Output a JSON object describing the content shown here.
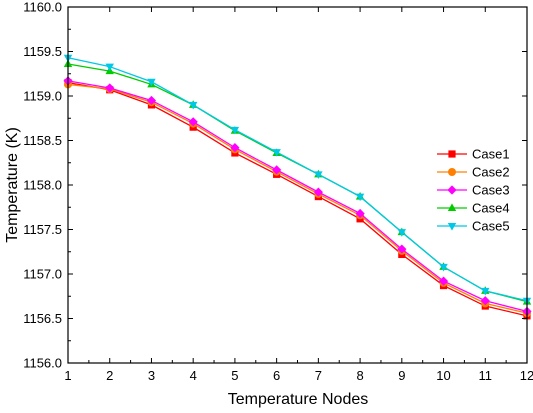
{
  "chart_data": {
    "type": "line",
    "title": "",
    "xlabel": "Temperature Nodes",
    "ylabel": "Temperature (K)",
    "xlim": [
      1,
      12
    ],
    "ylim": [
      1156.0,
      1160.0
    ],
    "x": [
      1,
      2,
      3,
      4,
      5,
      6,
      7,
      8,
      9,
      10,
      11,
      12
    ],
    "xticks": [
      "1",
      "2",
      "3",
      "4",
      "5",
      "6",
      "7",
      "8",
      "9",
      "10",
      "11",
      "12"
    ],
    "yticks": [
      "1156.0",
      "1156.5",
      "1157.0",
      "1157.5",
      "1158.0",
      "1158.5",
      "1159.0",
      "1159.5",
      "1160.0"
    ],
    "grid": false,
    "legend_position": "right",
    "series": [
      {
        "name": "Case1",
        "color": "#ff0000",
        "marker": "square",
        "values": [
          1159.15,
          1159.07,
          1158.9,
          1158.65,
          1158.36,
          1158.12,
          1157.87,
          1157.62,
          1157.22,
          1156.87,
          1156.64,
          1156.53
        ]
      },
      {
        "name": "Case2",
        "color": "#ff8000",
        "marker": "circle",
        "values": [
          1159.13,
          1159.08,
          1158.93,
          1158.69,
          1158.4,
          1158.15,
          1157.9,
          1157.66,
          1157.26,
          1156.9,
          1156.67,
          1156.56
        ]
      },
      {
        "name": "Case3",
        "color": "#ff00ff",
        "marker": "diamond",
        "values": [
          1159.17,
          1159.09,
          1158.95,
          1158.71,
          1158.42,
          1158.17,
          1157.92,
          1157.68,
          1157.28,
          1156.92,
          1156.7,
          1156.58
        ]
      },
      {
        "name": "Case4",
        "color": "#00cc00",
        "marker": "triangle-up",
        "values": [
          1159.36,
          1159.28,
          1159.13,
          1158.9,
          1158.61,
          1158.36,
          1158.12,
          1157.87,
          1157.47,
          1157.08,
          1156.81,
          1156.69
        ]
      },
      {
        "name": "Case5",
        "color": "#00c8e6",
        "marker": "triangle-down",
        "values": [
          1159.43,
          1159.33,
          1159.16,
          1158.9,
          1158.62,
          1158.37,
          1158.12,
          1157.87,
          1157.47,
          1157.08,
          1156.81,
          1156.7
        ]
      }
    ]
  }
}
